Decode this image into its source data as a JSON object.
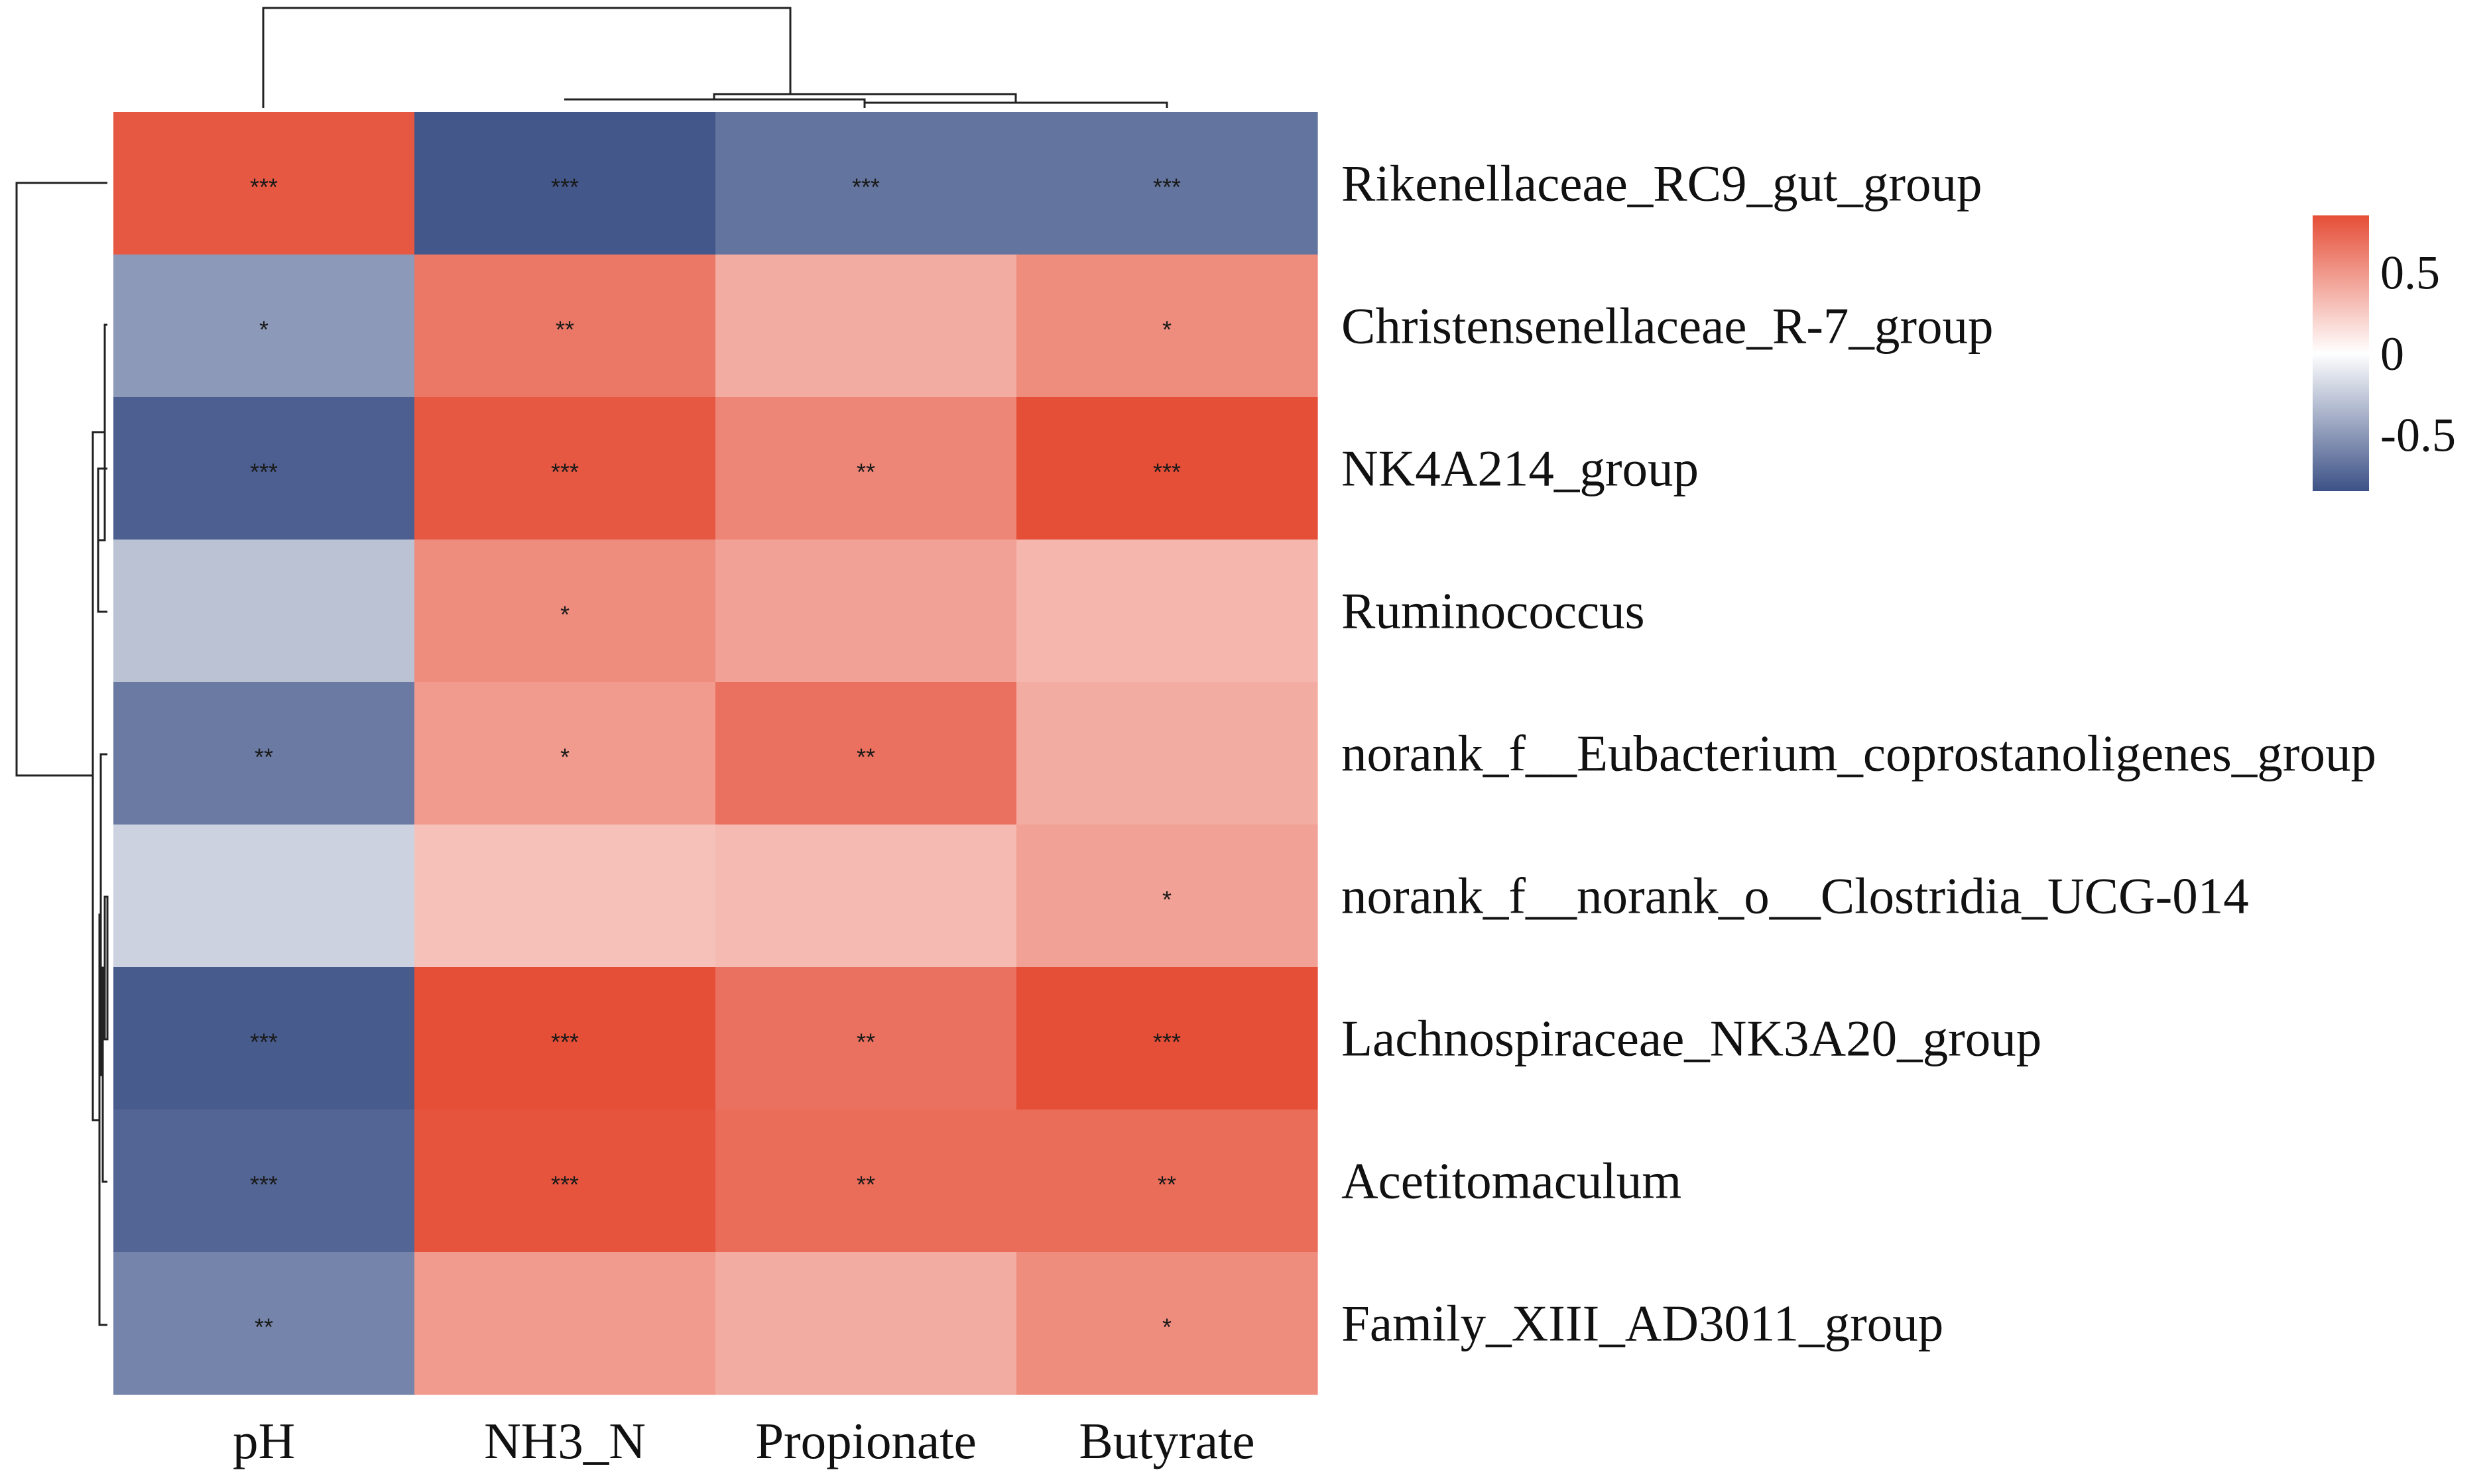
{
  "colors": {
    "negative": "#3c5186",
    "neutral": "#ffffff",
    "positive": "#e54e37"
  },
  "chart_data": {
    "type": "heatmap",
    "title": "",
    "columns": [
      "pH",
      "NH3_N",
      "Propionate",
      "Butyrate"
    ],
    "rows": [
      "Rikenellaceae_RC9_gut_group",
      "Christensenellaceae_R-7_group",
      "NK4A214_group",
      "Ruminococcus",
      "norank_f__Eubacterium_coprostanoligenes_group",
      "norank_f__norank_o__Clostridia_UCG-014",
      "Lachnospiraceae_NK3A20_group",
      "Acetitomaculum",
      "Family_XIII_AD3011_group"
    ],
    "values": [
      [
        0.8,
        -0.82,
        -0.68,
        -0.68
      ],
      [
        -0.5,
        0.65,
        0.4,
        0.55
      ],
      [
        -0.78,
        0.8,
        0.58,
        0.85
      ],
      [
        -0.3,
        0.55,
        0.45,
        0.35
      ],
      [
        -0.65,
        0.48,
        0.68,
        0.4
      ],
      [
        -0.22,
        0.3,
        0.33,
        0.45
      ],
      [
        -0.8,
        0.85,
        0.68,
        0.88
      ],
      [
        -0.75,
        0.82,
        0.7,
        0.7
      ],
      [
        -0.6,
        0.48,
        0.4,
        0.55
      ]
    ],
    "significance": [
      [
        "***",
        "***",
        "***",
        "***"
      ],
      [
        "*",
        "**",
        "",
        "*"
      ],
      [
        "***",
        "***",
        "**",
        "***"
      ],
      [
        "",
        "*",
        "",
        ""
      ],
      [
        "**",
        "*",
        "**",
        ""
      ],
      [
        "",
        "",
        "",
        "*"
      ],
      [
        "***",
        "***",
        "**",
        "***"
      ],
      [
        "***",
        "***",
        "**",
        "**"
      ],
      [
        "**",
        "",
        "",
        "*"
      ]
    ],
    "color_range": [
      -0.85,
      0.85
    ],
    "legend": {
      "ticks": [
        "0.5",
        "0",
        "-0.5"
      ],
      "tick_values": [
        0.5,
        0,
        -0.5
      ],
      "position": "right"
    }
  }
}
